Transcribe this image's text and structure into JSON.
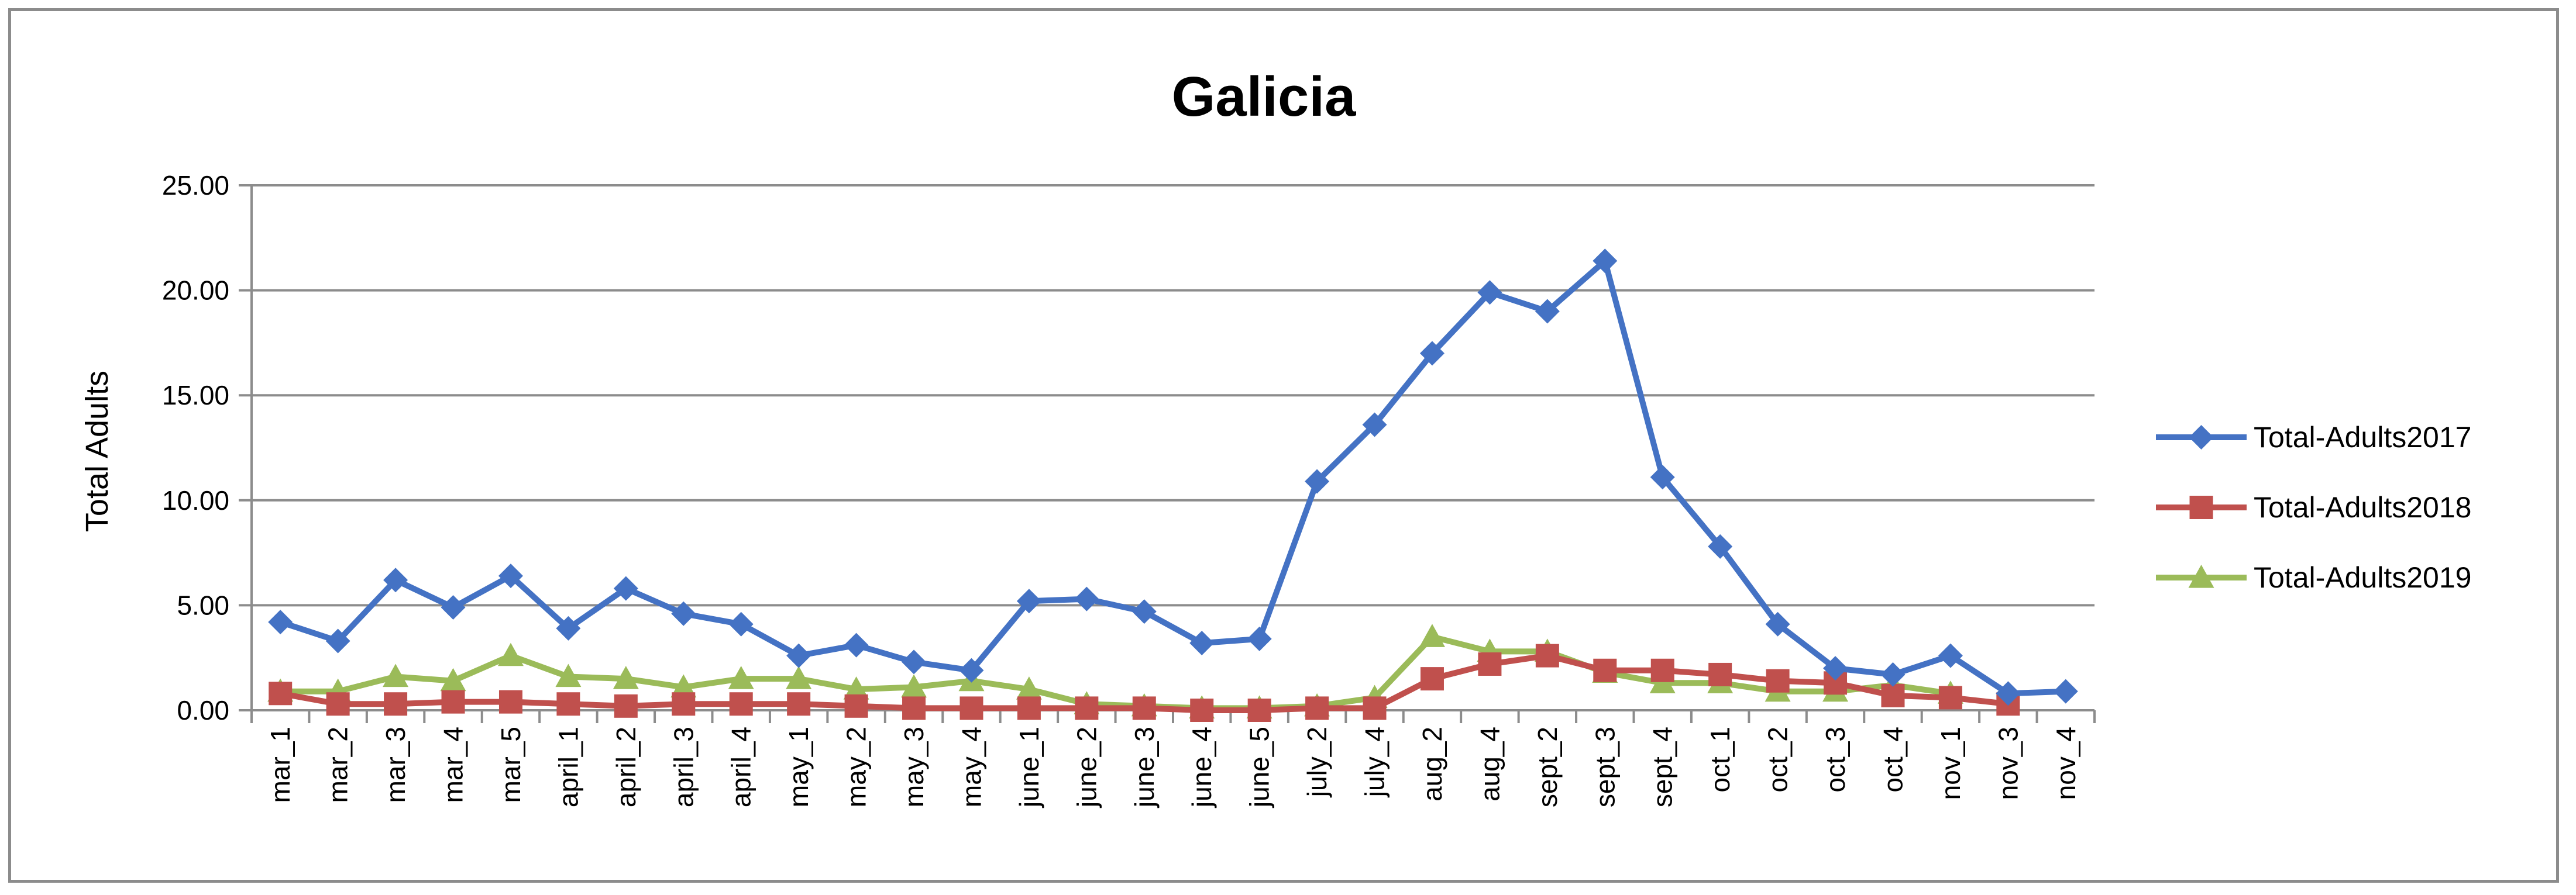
{
  "chart_data": {
    "type": "line",
    "title": "Galicia",
    "xlabel": "",
    "ylabel": "Total Adults",
    "ylim": [
      0,
      25
    ],
    "y_ticks": [
      "0.00",
      "5.00",
      "10.00",
      "15.00",
      "20.00",
      "25.00"
    ],
    "grid": "horizontal",
    "legend_position": "right",
    "categories": [
      "mar_1",
      "mar_2",
      "mar_3",
      "mar_4",
      "mar_5",
      "april_1",
      "april_2",
      "april_3",
      "april_4",
      "may_1",
      "may_2",
      "may_3",
      "may_4",
      "june_1",
      "june_2",
      "june_3",
      "june_4",
      "june_5",
      "july_2",
      "july_4",
      "aug_2",
      "aug_4",
      "sept_2",
      "sept_3",
      "sept_4",
      "oct_1",
      "oct_2",
      "oct_3",
      "oct_4",
      "nov_1",
      "nov_3",
      "nov_4"
    ],
    "series": [
      {
        "name": "Total-Adults2017",
        "color": "#4472c4",
        "marker": "diamond",
        "values": [
          4.2,
          3.3,
          6.2,
          4.9,
          6.4,
          3.9,
          5.8,
          4.6,
          4.1,
          2.6,
          3.1,
          2.3,
          1.9,
          5.2,
          5.3,
          4.7,
          3.2,
          3.4,
          10.9,
          13.6,
          17.0,
          19.9,
          19.0,
          21.4,
          11.1,
          7.8,
          4.1,
          2.0,
          1.7,
          2.6,
          0.8,
          0.9
        ]
      },
      {
        "name": "Total-Adults2018",
        "color": "#c0504d",
        "marker": "square",
        "values": [
          0.8,
          0.3,
          0.3,
          0.4,
          0.4,
          0.3,
          0.2,
          0.3,
          0.3,
          0.3,
          0.2,
          0.1,
          0.1,
          0.1,
          0.1,
          0.1,
          0.0,
          0.0,
          0.1,
          0.1,
          1.5,
          2.2,
          2.6,
          1.9,
          1.9,
          1.7,
          1.4,
          1.3,
          0.7,
          0.6,
          0.3,
          null
        ]
      },
      {
        "name": "Total-Adults2019",
        "color": "#9bbb59",
        "marker": "triangle",
        "values": [
          0.9,
          0.9,
          1.6,
          1.4,
          2.6,
          1.6,
          1.5,
          1.1,
          1.5,
          1.5,
          1.0,
          1.1,
          1.4,
          1.0,
          0.3,
          0.2,
          0.1,
          0.1,
          0.2,
          0.6,
          3.5,
          2.8,
          2.8,
          1.8,
          1.3,
          1.3,
          0.9,
          0.9,
          1.2,
          0.8,
          null,
          null
        ]
      }
    ]
  }
}
